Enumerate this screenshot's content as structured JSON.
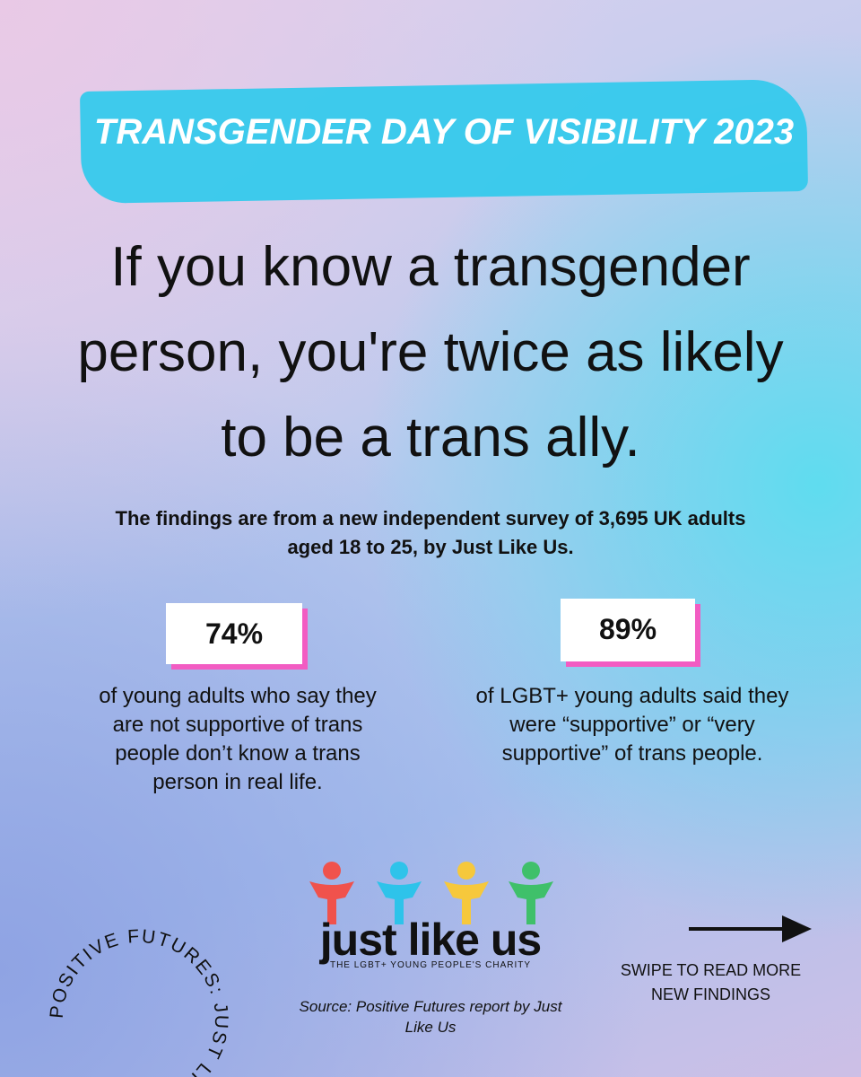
{
  "banner": {
    "title": "TRANSGENDER DAY OF VISIBILITY 2023"
  },
  "headline": "If you know a transgender person, you're twice as likely to be a trans ally.",
  "subtitle": "The findings are from a new independent survey of 3,695 UK adults aged 18 to 25, by Just Like Us.",
  "stats": [
    {
      "figure": "74%",
      "text": "of young adults who say they are not supportive of trans people don’t know a trans person in real life."
    },
    {
      "figure": "89%",
      "text": "of LGBT+ young adults said they were “supportive” or “very supportive” of trans people."
    }
  ],
  "footer": {
    "circle_text": "POSITIVE FUTURES: JUST LIKE US",
    "logo": {
      "name": "just like us",
      "tagline": "THE LGBT+ YOUNG PEOPLE'S CHARITY"
    },
    "source": "Source: Positive Futures report by Just Like Us",
    "swipe": "SWIPE TO READ MORE NEW FINDINGS"
  }
}
